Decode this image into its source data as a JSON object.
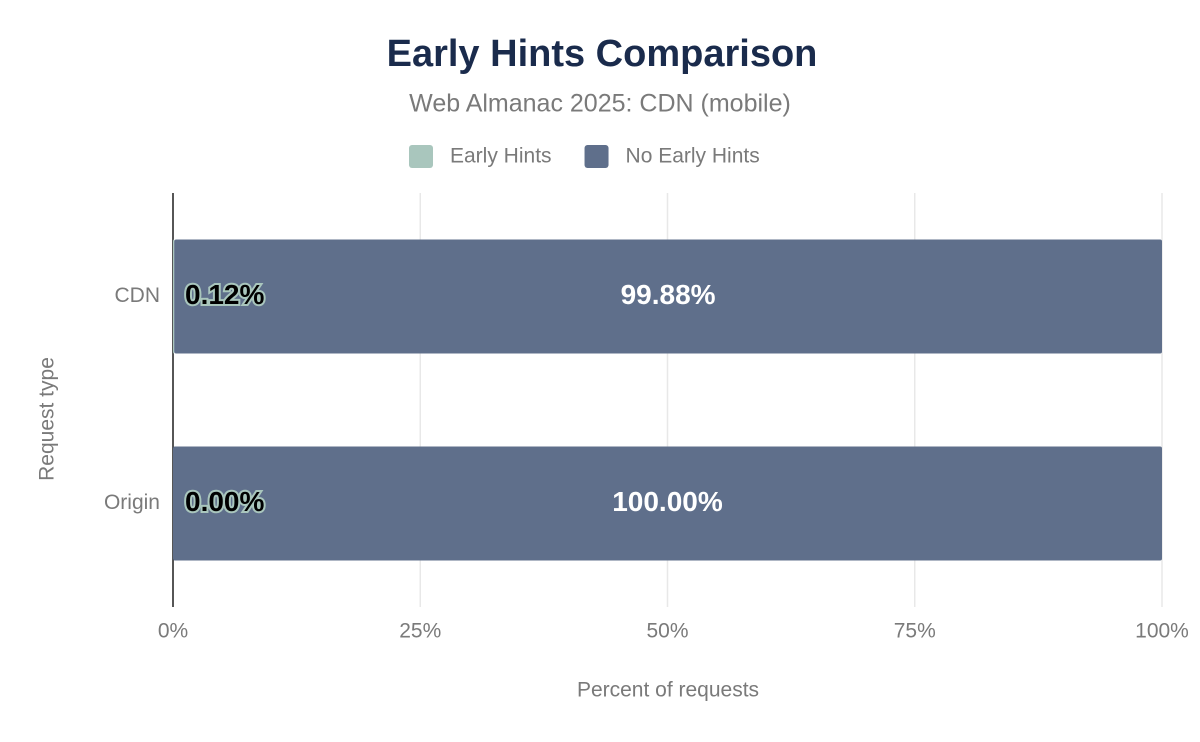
{
  "chart_data": {
    "type": "stacked-bar-horizontal",
    "title": "Early Hints Comparison",
    "subtitle": "Web Almanac 2025: CDN (mobile)",
    "x_label": "Percent of requests",
    "y_label": "Request type",
    "categories": [
      "CDN",
      "Origin"
    ],
    "series": [
      {
        "name": "Early Hints",
        "color": "#a9c6bd",
        "values": [
          0.12,
          0.0
        ],
        "value_labels": [
          "0.12%",
          "0.00%"
        ]
      },
      {
        "name": "No Early Hints",
        "color": "#5f6f8b",
        "values": [
          99.88,
          100.0
        ],
        "value_labels": [
          "99.88%",
          "100.00%"
        ]
      }
    ],
    "xlim": [
      0,
      100
    ],
    "xticks": [
      {
        "value": 0,
        "label": "0%"
      },
      {
        "value": 25,
        "label": "25%"
      },
      {
        "value": 50,
        "label": "50%"
      },
      {
        "value": 75,
        "label": "75%"
      },
      {
        "value": 100,
        "label": "100%"
      }
    ],
    "grid": true,
    "legend": "top"
  }
}
